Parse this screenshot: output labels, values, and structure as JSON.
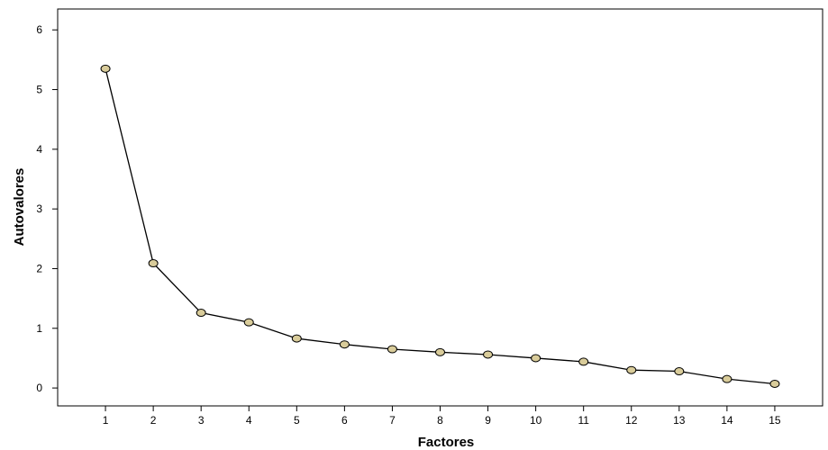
{
  "chart_data": {
    "type": "line",
    "title": "",
    "xlabel": "Factores",
    "ylabel": "Autovalores",
    "x": [
      1,
      2,
      3,
      4,
      5,
      6,
      7,
      8,
      9,
      10,
      11,
      12,
      13,
      14,
      15
    ],
    "series": [
      {
        "values": [
          5.35,
          2.09,
          1.26,
          1.1,
          0.83,
          0.73,
          0.65,
          0.6,
          0.56,
          0.5,
          0.44,
          0.3,
          0.28,
          0.15,
          0.07
        ]
      }
    ],
    "xticks": [
      "1",
      "2",
      "3",
      "4",
      "5",
      "6",
      "7",
      "8",
      "9",
      "10",
      "11",
      "12",
      "13",
      "14",
      "15"
    ],
    "yticks": [
      "0",
      "1",
      "2",
      "3",
      "4",
      "5",
      "6"
    ],
    "xlim": [
      0,
      16
    ],
    "ylim": [
      -0.3,
      6.35
    ],
    "grid": false,
    "legend": "none",
    "colors": {
      "line": "#000000",
      "marker_fill": "#d9cc9a",
      "marker_stroke": "#000000",
      "frame": "#000000"
    }
  }
}
